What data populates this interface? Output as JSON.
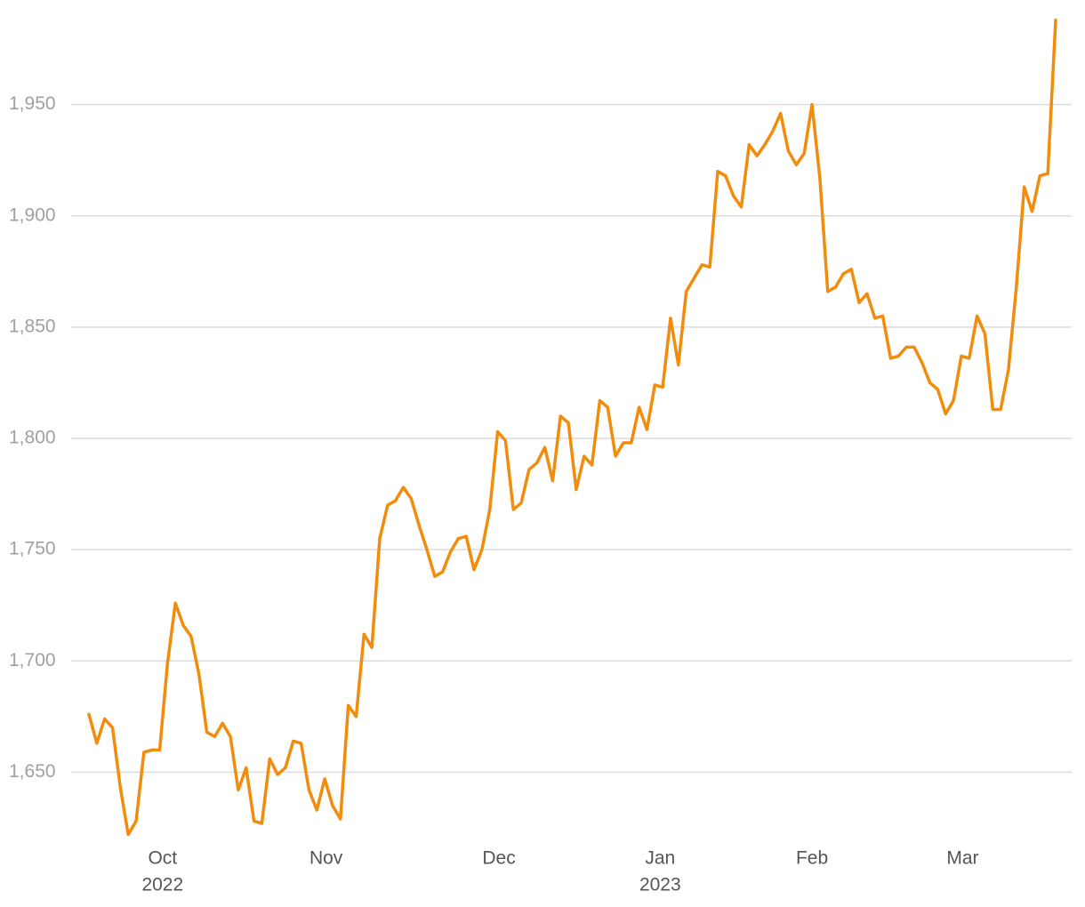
{
  "chart_data": {
    "type": "line",
    "values": [
      1676,
      1663,
      1674,
      1670,
      1643,
      1622,
      1628,
      1659,
      1660,
      1660,
      1699,
      1726,
      1716,
      1711,
      1694,
      1668,
      1666,
      1672,
      1666,
      1642,
      1652,
      1628,
      1627,
      1656,
      1649,
      1652,
      1664,
      1663,
      1642,
      1633,
      1647,
      1635,
      1629,
      1680,
      1675,
      1712,
      1706,
      1755,
      1770,
      1772,
      1778,
      1773,
      1761,
      1750,
      1738,
      1740,
      1749,
      1755,
      1756,
      1741,
      1750,
      1768,
      1803,
      1799,
      1768,
      1771,
      1786,
      1789,
      1796,
      1781,
      1810,
      1807,
      1777,
      1792,
      1788,
      1817,
      1814,
      1792,
      1798,
      1798,
      1814,
      1804,
      1824,
      1823,
      1854,
      1833,
      1866,
      1872,
      1878,
      1877,
      1920,
      1918,
      1909,
      1904,
      1932,
      1927,
      1932,
      1938,
      1946,
      1929,
      1923,
      1928,
      1950,
      1917,
      1866,
      1868,
      1874,
      1876,
      1861,
      1865,
      1854,
      1855,
      1836,
      1837,
      1841,
      1841,
      1834,
      1825,
      1822,
      1811,
      1817,
      1837,
      1836,
      1855,
      1847,
      1813,
      1813,
      1831,
      1868,
      1913,
      1902,
      1918,
      1919,
      1988
    ],
    "color": "#f28c0c",
    "xlim": [
      0,
      123
    ],
    "xticks": [
      {
        "value": 9.37,
        "label": "Oct",
        "year": "2022"
      },
      {
        "value": 30.17,
        "label": "Nov"
      },
      {
        "value": 52.17,
        "label": "Dec"
      },
      {
        "value": 72.68,
        "label": "Jan",
        "year": "2023"
      },
      {
        "value": 92,
        "label": "Feb"
      },
      {
        "value": 111.17,
        "label": "Mar"
      }
    ],
    "ylim": [
      1617,
      1993
    ],
    "yticks": [
      {
        "value": 1650,
        "label": "1,650"
      },
      {
        "value": 1700,
        "label": "1,700"
      },
      {
        "value": 1750,
        "label": "1,750"
      },
      {
        "value": 1800,
        "label": "1,800"
      },
      {
        "value": 1850,
        "label": "1,850"
      },
      {
        "value": 1900,
        "label": "1,900"
      },
      {
        "value": 1950,
        "label": "1,950"
      }
    ],
    "grid": true
  }
}
